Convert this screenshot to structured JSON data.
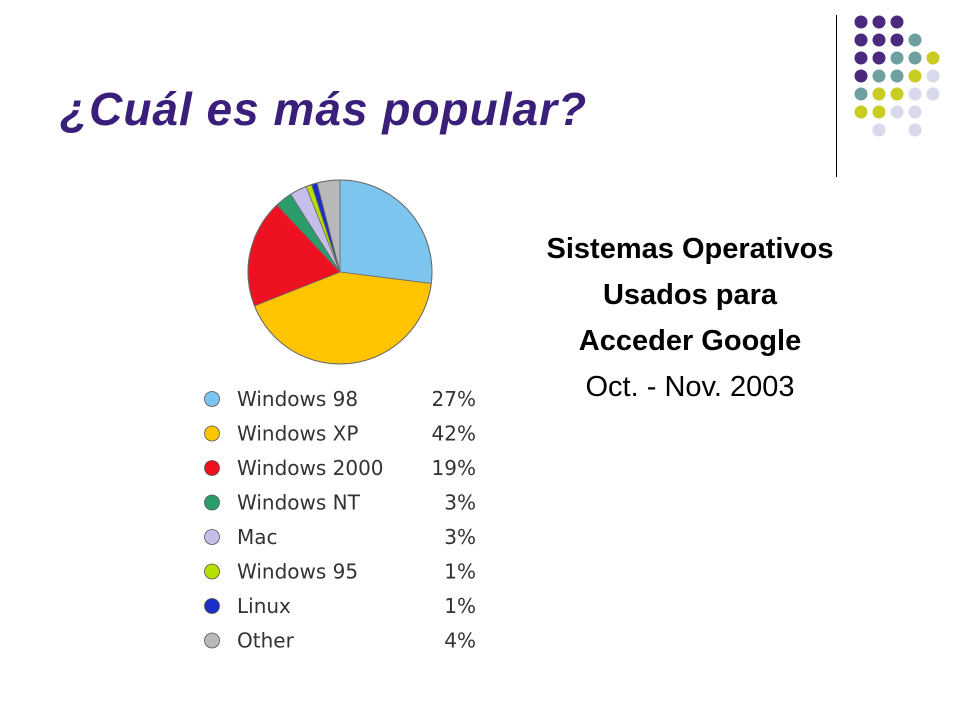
{
  "slide": {
    "title": "¿Cuál es más popular?",
    "title_color": "#3a1f7a"
  },
  "caption": {
    "line1": "Sistemas Operativos",
    "line2": "Usados para",
    "line3": "Acceder Google",
    "line4": "Oct. - Nov.  2003"
  },
  "decor": {
    "dot_colors": {
      "purple": "#4b2a7e",
      "teal": "#6fa0a0",
      "lime": "#c9cc22",
      "lavender": "#d9d9ec"
    }
  },
  "chart_data": {
    "type": "pie",
    "title": "",
    "slices": [
      {
        "label": "Windows 98",
        "value": 27,
        "display": "27%",
        "color": "#7cc5ee"
      },
      {
        "label": "Windows XP",
        "value": 42,
        "display": "42%",
        "color": "#ffc400"
      },
      {
        "label": "Windows 2000",
        "value": 19,
        "display": "19%",
        "color": "#ee1122"
      },
      {
        "label": "Windows NT",
        "value": 3,
        "display": "3%",
        "color": "#2a9d6b"
      },
      {
        "label": "Mac",
        "value": 3,
        "display": "3%",
        "color": "#c5bdea"
      },
      {
        "label": "Windows 95",
        "value": 1,
        "display": "1%",
        "color": "#b5e000"
      },
      {
        "label": "Linux",
        "value": 1,
        "display": "1%",
        "color": "#1a2fc8"
      },
      {
        "label": "Other",
        "value": 4,
        "display": "4%",
        "color": "#b8b8b8"
      }
    ],
    "start_angle_deg": 0,
    "direction": "clockwise",
    "legend_position": "below"
  }
}
